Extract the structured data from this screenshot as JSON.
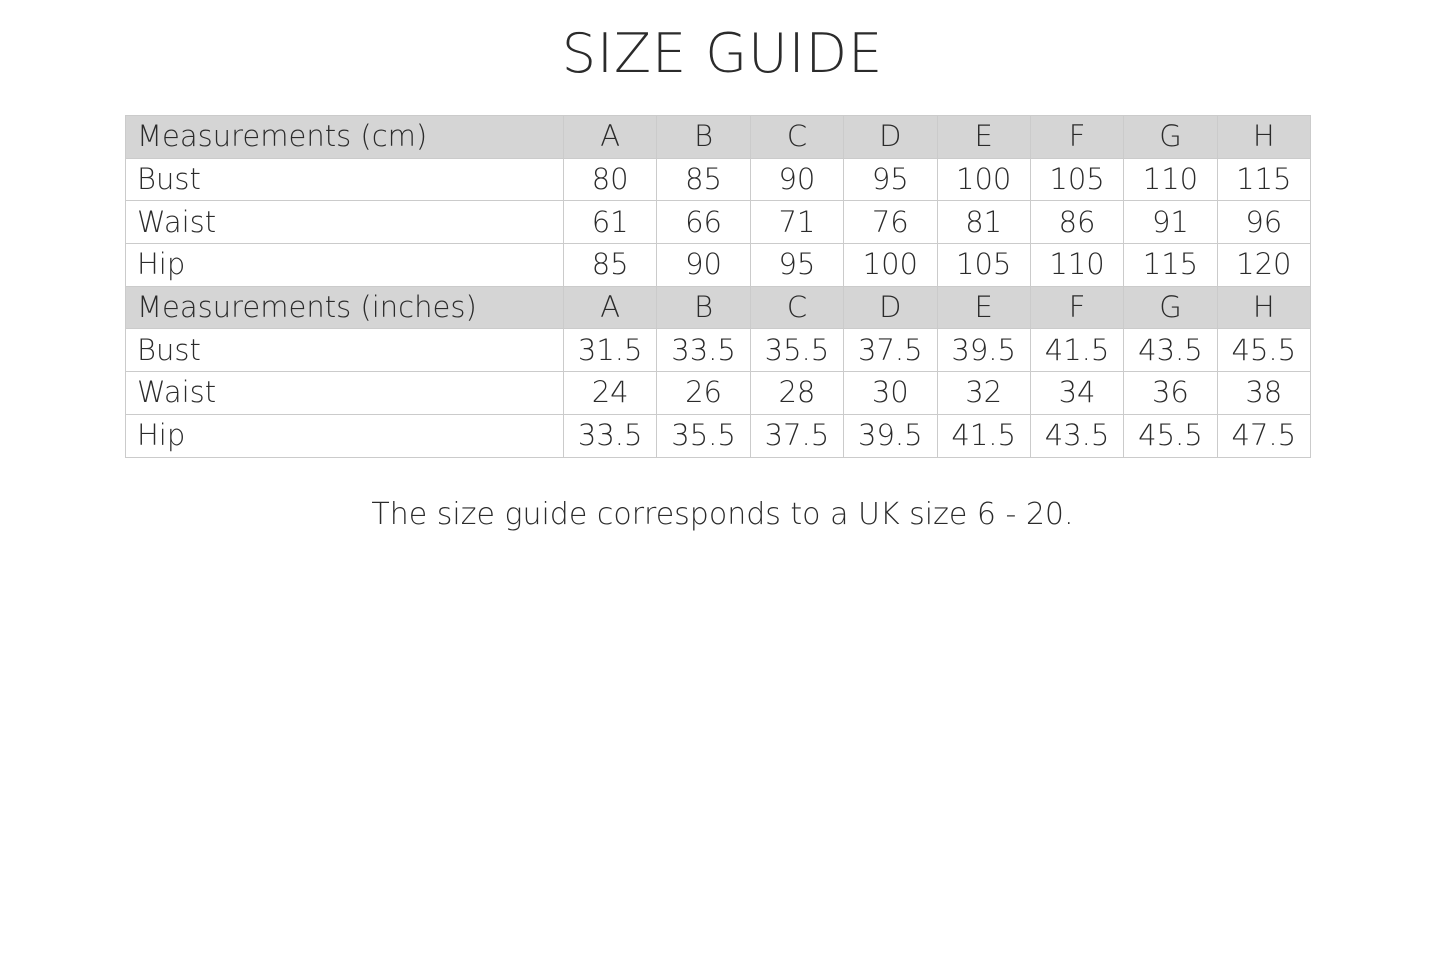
{
  "page": {
    "title": "SIZE GUIDE",
    "footnote": "The size guide corresponds to a UK size 6 - 20."
  },
  "table": {
    "size_labels": [
      "A",
      "B",
      "C",
      "D",
      "E",
      "F",
      "G",
      "H"
    ],
    "sections": [
      {
        "header": "Measurements (cm)",
        "rows": [
          {
            "label": "Bust",
            "values": [
              "80",
              "85",
              "90",
              "95",
              "100",
              "105",
              "110",
              "115"
            ]
          },
          {
            "label": "Waist",
            "values": [
              "61",
              "66",
              "71",
              "76",
              "81",
              "86",
              "91",
              "96"
            ]
          },
          {
            "label": "Hip",
            "values": [
              "85",
              "90",
              "95",
              "100",
              "105",
              "110",
              "115",
              "120"
            ]
          }
        ]
      },
      {
        "header": "Measurements (inches)",
        "rows": [
          {
            "label": "Bust",
            "values": [
              "31.5",
              "33.5",
              "35.5",
              "37.5",
              "39.5",
              "41.5",
              "43.5",
              "45.5"
            ]
          },
          {
            "label": "Waist",
            "values": [
              "24",
              "26",
              "28",
              "30",
              "32",
              "34",
              "36",
              "38"
            ]
          },
          {
            "label": "Hip",
            "values": [
              "33.5",
              "35.5",
              "37.5",
              "39.5",
              "41.5",
              "43.5",
              "45.5",
              "47.5"
            ]
          }
        ]
      }
    ]
  },
  "colors": {
    "header_bg": "#d5d5d5",
    "border": "#cbcbcb",
    "text": "#2b2b2b"
  }
}
